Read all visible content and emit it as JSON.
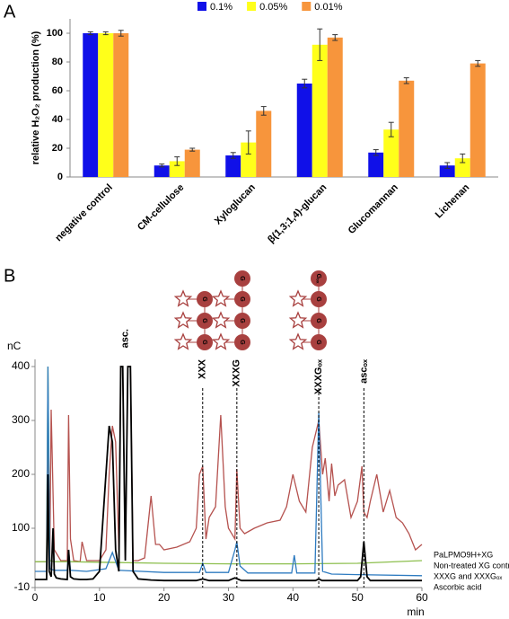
{
  "chart_data": [
    {
      "type": "bar",
      "label": "A",
      "ylabel": "relative H₂O₂ production (%)",
      "categories": [
        "negative control",
        "CM-cellulose",
        "Xyloglucan",
        "β(1,3;1,4)-glucan",
        "Glucomannan",
        "Lichenan"
      ],
      "series": [
        {
          "name": "0.1%",
          "color": "#1010e8",
          "values": [
            100,
            8,
            15,
            65,
            17,
            8
          ],
          "errors": [
            1,
            1,
            2,
            3,
            2,
            2
          ]
        },
        {
          "name": "0.05%",
          "color": "#ffff1a",
          "values": [
            100,
            11,
            24,
            92,
            33,
            13
          ],
          "errors": [
            1,
            3,
            8,
            11,
            5,
            3
          ]
        },
        {
          "name": "0.01%",
          "color": "#f7953c",
          "values": [
            100,
            19,
            46,
            97,
            67,
            79
          ],
          "errors": [
            2,
            1,
            3,
            2,
            2,
            2
          ]
        }
      ],
      "ylim": [
        0,
        110
      ],
      "yticks": [
        0,
        20,
        40,
        60,
        80,
        100
      ],
      "legend": "top"
    },
    {
      "type": "line",
      "label": "B",
      "xlabel": "min",
      "ylabel": "nC",
      "xlim": [
        0,
        60
      ],
      "xticks": [
        0,
        10,
        20,
        30,
        40,
        50,
        60
      ],
      "ylim": [
        -10,
        400
      ],
      "yticks": [
        -10,
        100,
        200,
        300,
        400
      ],
      "symbols": {
        "glucose": "G",
        "oxidized": "Gₒₓ"
      },
      "annotations": [
        {
          "text": "asc.",
          "x": 14,
          "dashed": false
        },
        {
          "text": "XXX",
          "x": 26,
          "dashed": true
        },
        {
          "text": "XXXG",
          "x": 31.3,
          "dashed": true
        },
        {
          "text": "XXXGₒₓ",
          "x": 44,
          "dashed": true
        },
        {
          "text": "ascₒₓ",
          "x": 51,
          "dashed": true
        }
      ],
      "legend": "right",
      "series": [
        {
          "name": "PaLPMO9H+XG",
          "color": "#b5524f",
          "x": [
            0,
            1.8,
            2,
            2.3,
            2.5,
            3,
            4,
            5,
            5.2,
            5.5,
            6,
            7,
            7.3,
            8,
            10,
            11,
            11.5,
            12,
            12.5,
            13,
            13.3,
            13.6,
            14,
            14.4,
            14.8,
            15.2,
            16,
            17,
            18,
            18.7,
            19.3,
            20,
            22,
            24,
            25,
            25.5,
            26,
            26.5,
            27,
            28,
            28.8,
            29.5,
            30,
            31,
            31.3,
            31.8,
            32.5,
            34,
            36,
            38,
            39,
            40,
            41,
            42,
            43,
            44,
            44.6,
            45,
            45.6,
            46,
            46.5,
            47,
            48,
            49,
            50,
            50.7,
            51,
            51.5,
            52,
            53,
            54,
            55,
            56,
            57,
            58,
            59,
            60
          ],
          "values": [
            38,
            38,
            310,
            40,
            320,
            60,
            40,
            40,
            310,
            80,
            40,
            38,
            75,
            40,
            40,
            60,
            200,
            290,
            260,
            60,
            400,
            400,
            40,
            400,
            400,
            40,
            40,
            45,
            160,
            70,
            70,
            60,
            65,
            75,
            100,
            200,
            215,
            80,
            120,
            140,
            310,
            140,
            100,
            80,
            210,
            100,
            90,
            100,
            110,
            115,
            140,
            200,
            150,
            130,
            250,
            300,
            200,
            230,
            150,
            220,
            160,
            180,
            190,
            120,
            150,
            215,
            130,
            120,
            150,
            200,
            130,
            170,
            120,
            110,
            90,
            60,
            70
          ]
        },
        {
          "name": "Non-treated XG control",
          "color": "#8dbf4e",
          "x": [
            0,
            1.8,
            2,
            2.3,
            3,
            5,
            10,
            20,
            30,
            40,
            50,
            60
          ],
          "values": [
            38,
            38,
            400,
            40,
            38,
            38,
            37,
            35,
            34,
            34,
            35,
            40
          ]
        },
        {
          "name": "XXXG and XXXGₒₓ",
          "color": "#2e7bc0",
          "x": [
            0,
            1.8,
            2,
            2.3,
            3,
            5,
            5.2,
            5.5,
            8,
            11,
            12,
            13,
            20,
            25.5,
            26,
            26.5,
            30,
            31,
            31.3,
            31.8,
            33,
            39.8,
            40.2,
            40.6,
            43.4,
            44,
            44.6,
            46,
            50,
            60
          ],
          "values": [
            20,
            20,
            400,
            25,
            22,
            22,
            60,
            22,
            20,
            25,
            55,
            22,
            18,
            18,
            35,
            18,
            18,
            60,
            75,
            30,
            17,
            17,
            50,
            17,
            17,
            315,
            20,
            15,
            14,
            12
          ]
        },
        {
          "name": "Ascorbic acid",
          "color": "#000000",
          "x": [
            0,
            1.8,
            2,
            2.2,
            2.5,
            2.8,
            3,
            3.3,
            4,
            5,
            5.2,
            5.5,
            6,
            7,
            8,
            9,
            10,
            11,
            11.5,
            12,
            12.5,
            13,
            13.3,
            13.6,
            14,
            14.4,
            14.8,
            15.2,
            16,
            18,
            20,
            25,
            26,
            27,
            30,
            31,
            32,
            40,
            43.5,
            44,
            44.5,
            50,
            50.5,
            51,
            51.5,
            52,
            55,
            60
          ],
          "values": [
            5,
            5,
            200,
            20,
            10,
            100,
            15,
            8,
            6,
            5,
            60,
            10,
            6,
            5,
            5,
            6,
            20,
            200,
            290,
            260,
            60,
            20,
            400,
            400,
            40,
            400,
            400,
            20,
            6,
            4,
            3,
            3,
            6,
            3,
            3,
            8,
            3,
            3,
            3,
            6,
            3,
            3,
            10,
            75,
            10,
            3,
            3,
            3
          ]
        }
      ]
    }
  ]
}
